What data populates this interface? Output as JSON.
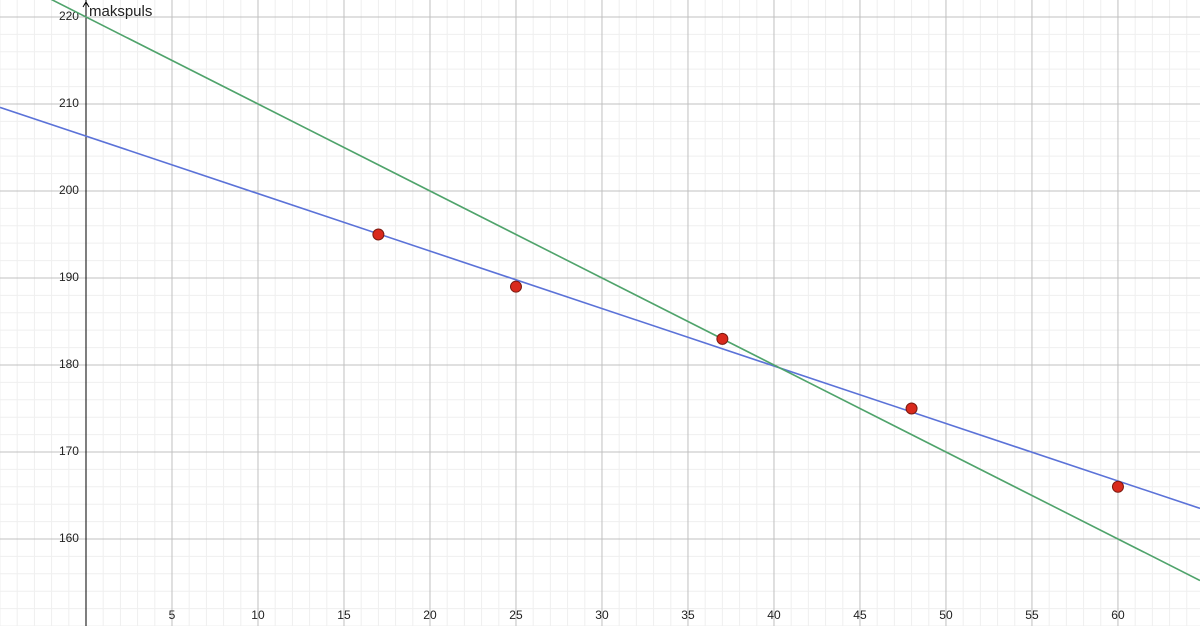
{
  "chart_data": {
    "type": "scatter",
    "y_label": "makspuls",
    "x": [
      17,
      25,
      37,
      48,
      60
    ],
    "values": [
      195,
      189,
      183,
      175,
      166
    ],
    "color": "#d9291c",
    "lines": [
      {
        "slope": -0.6606,
        "intercept": 206.305,
        "color": "#5b72d8"
      },
      {
        "slope": -1,
        "intercept": 220,
        "color": "#4fa36b"
      }
    ],
    "xlim": [
      -5,
      64.77
    ],
    "ylim": [
      150,
      221.95
    ],
    "xticks": [
      5,
      10,
      15,
      20,
      25,
      30,
      35,
      40,
      45,
      50,
      55,
      60
    ],
    "yticks": [
      160,
      170,
      180,
      190,
      200,
      210,
      220
    ],
    "grid": true
  }
}
